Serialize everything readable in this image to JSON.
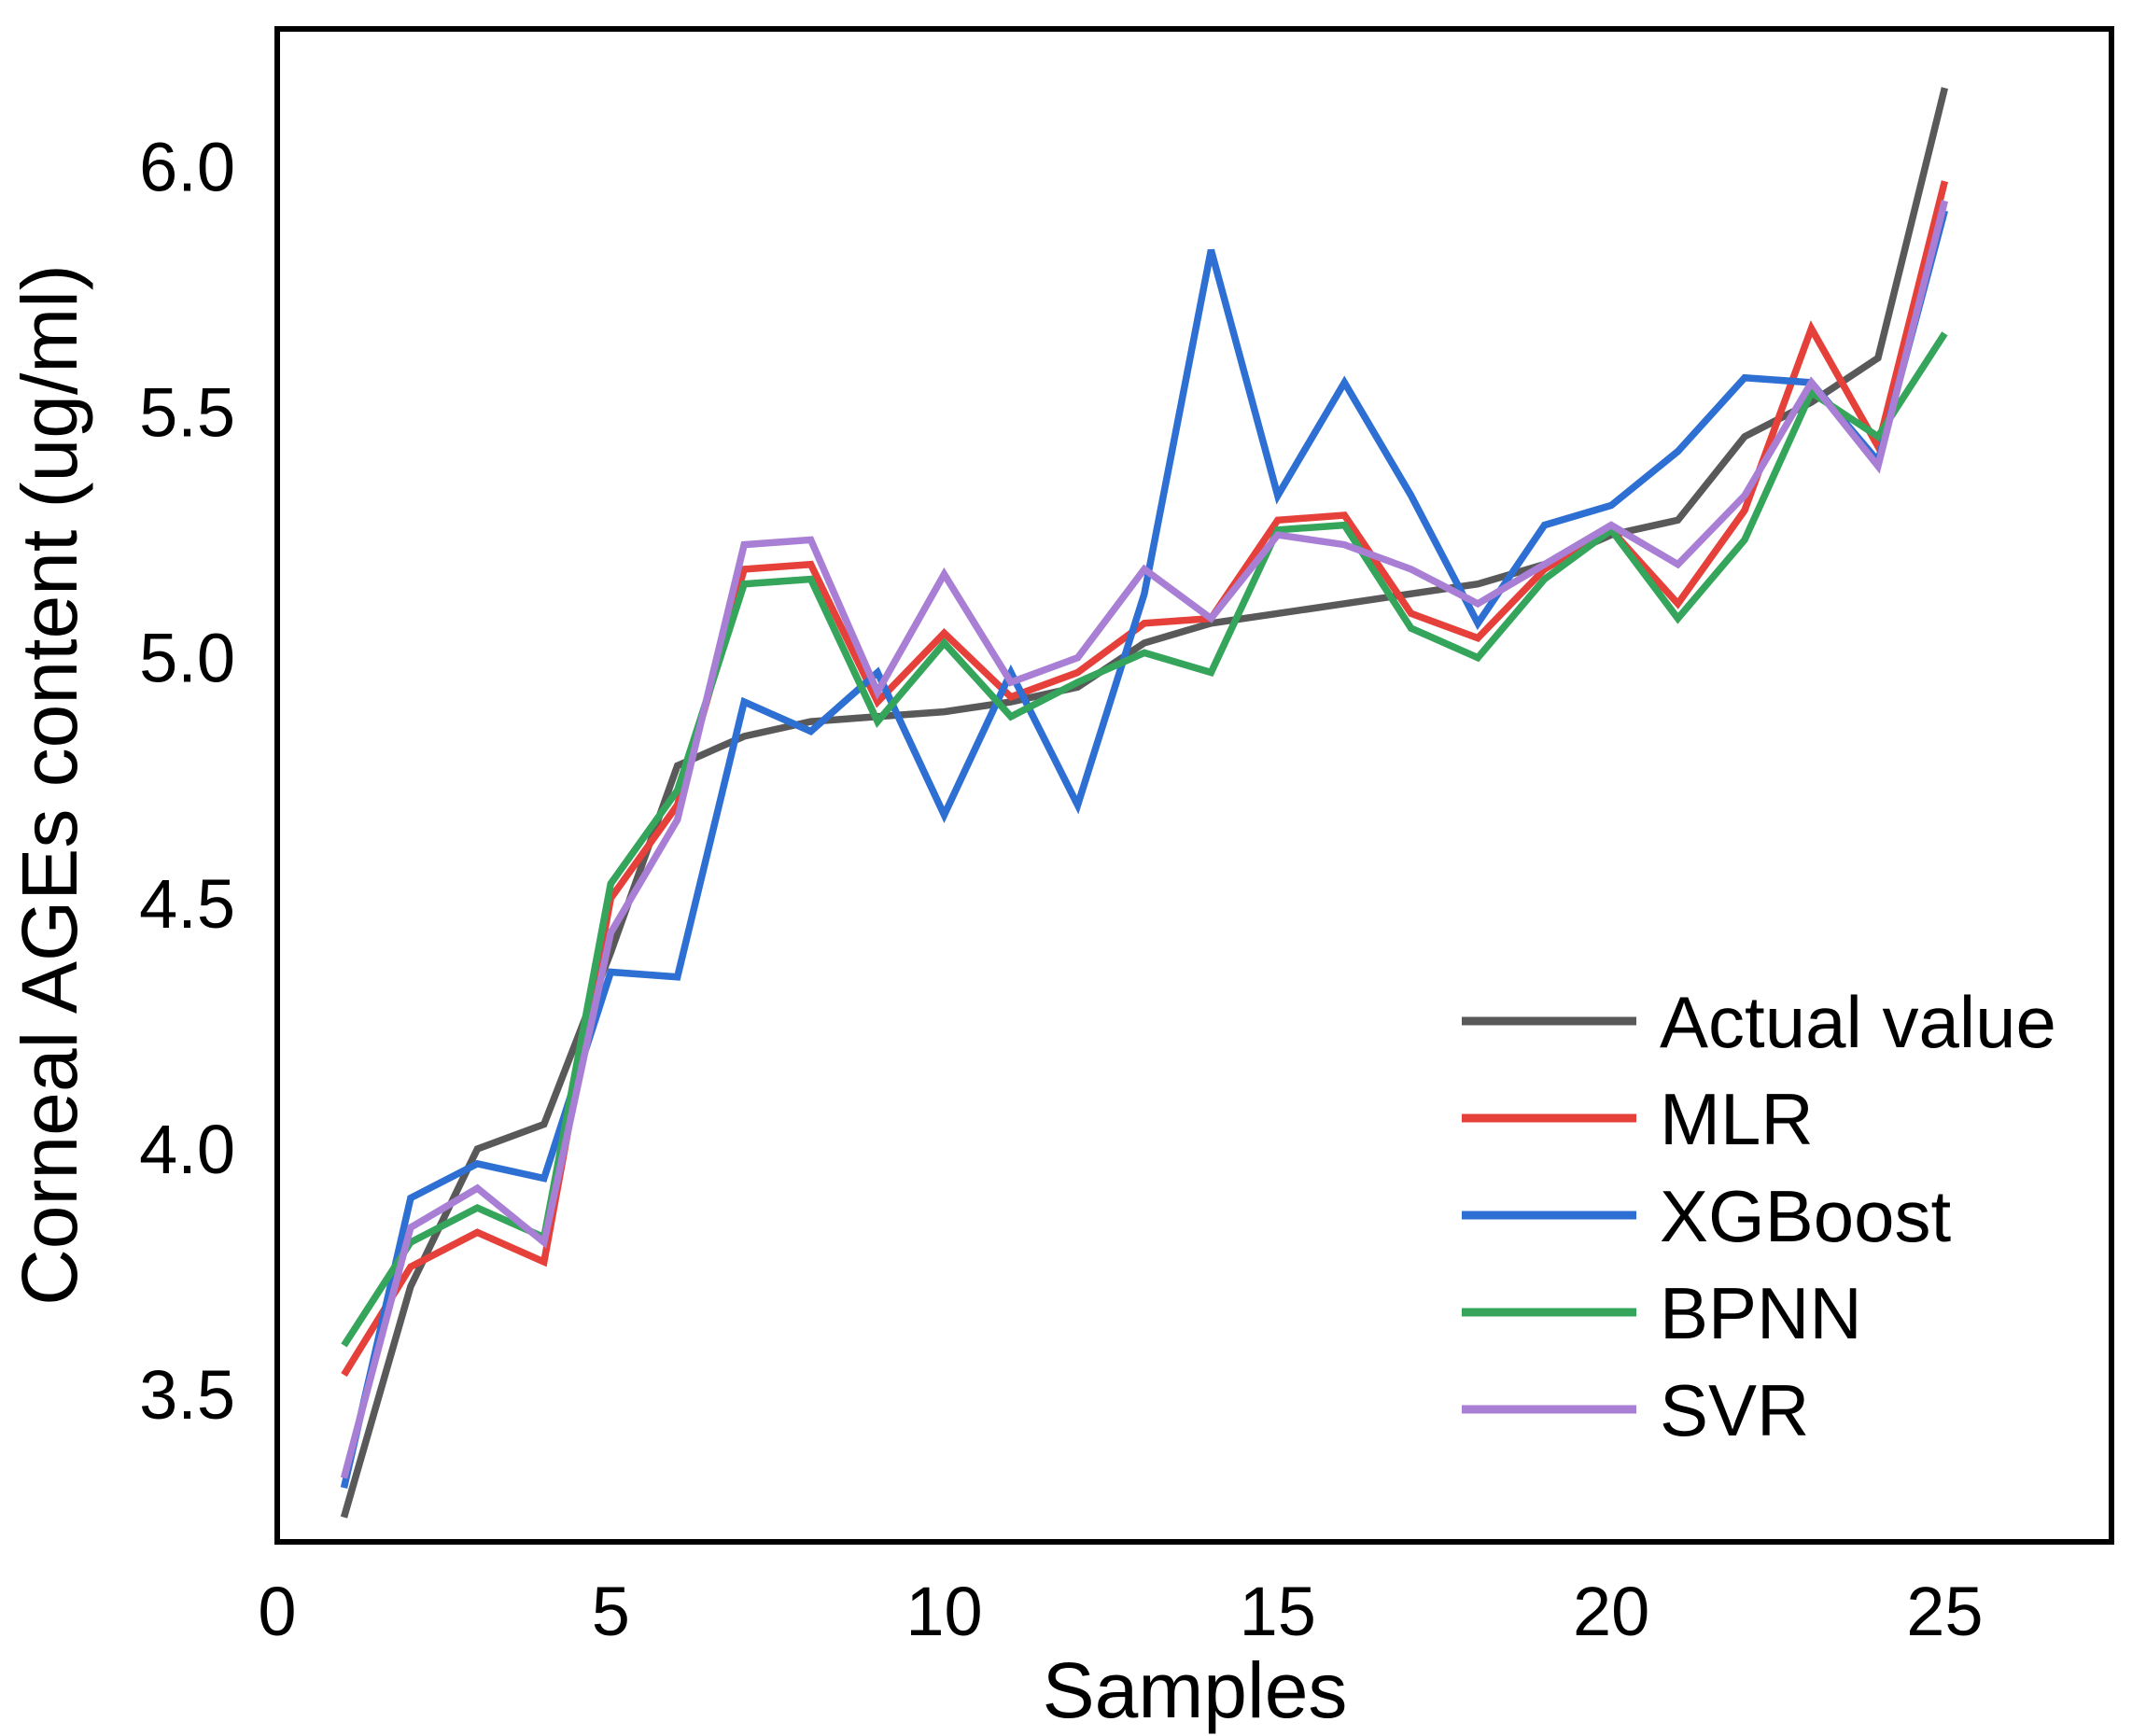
{
  "figure": {
    "background": "#ffffff",
    "frame_color": "#000000"
  },
  "chart_data": {
    "type": "line",
    "title": "",
    "xlabel": "Samples",
    "ylabel": "Corneal AGEs content (ug/ml)",
    "xlim": [
      0,
      27.5
    ],
    "ylim": [
      3.2,
      6.28
    ],
    "x_ticks": [
      0,
      5,
      10,
      15,
      20,
      25
    ],
    "y_ticks": [
      3.5,
      4.0,
      4.5,
      5.0,
      5.5,
      6.0
    ],
    "grid": false,
    "legend_position": "lower right",
    "x": [
      1,
      2,
      3,
      4,
      5,
      6,
      7,
      8,
      9,
      10,
      11,
      12,
      13,
      14,
      15,
      16,
      17,
      18,
      19,
      20,
      21,
      22,
      23,
      24,
      25
    ],
    "series": [
      {
        "name": "Actual value",
        "color": "#595959",
        "values": [
          3.25,
          3.72,
          4.0,
          4.05,
          4.4,
          4.78,
          4.84,
          4.87,
          4.88,
          4.89,
          4.91,
          4.94,
          5.03,
          5.07,
          5.09,
          5.11,
          5.13,
          5.15,
          5.19,
          5.25,
          5.28,
          5.45,
          5.52,
          5.61,
          6.16
        ]
      },
      {
        "name": "MLR",
        "color": "#e6403a",
        "values": [
          3.54,
          3.76,
          3.83,
          3.77,
          4.51,
          4.7,
          5.18,
          5.19,
          4.91,
          5.05,
          4.92,
          4.97,
          5.07,
          5.08,
          5.28,
          5.29,
          5.09,
          5.04,
          5.18,
          5.26,
          5.11,
          5.3,
          5.67,
          5.43,
          5.97
        ]
      },
      {
        "name": "XGBoost",
        "color": "#2d6fd2",
        "values": [
          3.31,
          3.9,
          3.97,
          3.94,
          4.36,
          4.35,
          4.91,
          4.85,
          4.97,
          4.68,
          4.97,
          4.7,
          5.13,
          5.83,
          5.33,
          5.56,
          5.33,
          5.07,
          5.27,
          5.31,
          5.42,
          5.57,
          5.56,
          5.4,
          5.91
        ]
      },
      {
        "name": "BPNN",
        "color": "#35a55b",
        "values": [
          3.6,
          3.81,
          3.88,
          3.82,
          4.54,
          4.73,
          5.15,
          5.16,
          4.87,
          5.03,
          4.88,
          4.95,
          5.01,
          4.97,
          5.26,
          5.27,
          5.06,
          5.0,
          5.16,
          5.26,
          5.08,
          5.24,
          5.54,
          5.45,
          5.66
        ]
      },
      {
        "name": "SVR",
        "color": "#a97fd6",
        "values": [
          3.33,
          3.84,
          3.92,
          3.81,
          4.44,
          4.67,
          5.23,
          5.24,
          4.93,
          5.17,
          4.95,
          5.0,
          5.18,
          5.08,
          5.25,
          5.23,
          5.18,
          5.11,
          5.19,
          5.27,
          5.19,
          5.33,
          5.56,
          5.39,
          5.93
        ]
      }
    ]
  }
}
